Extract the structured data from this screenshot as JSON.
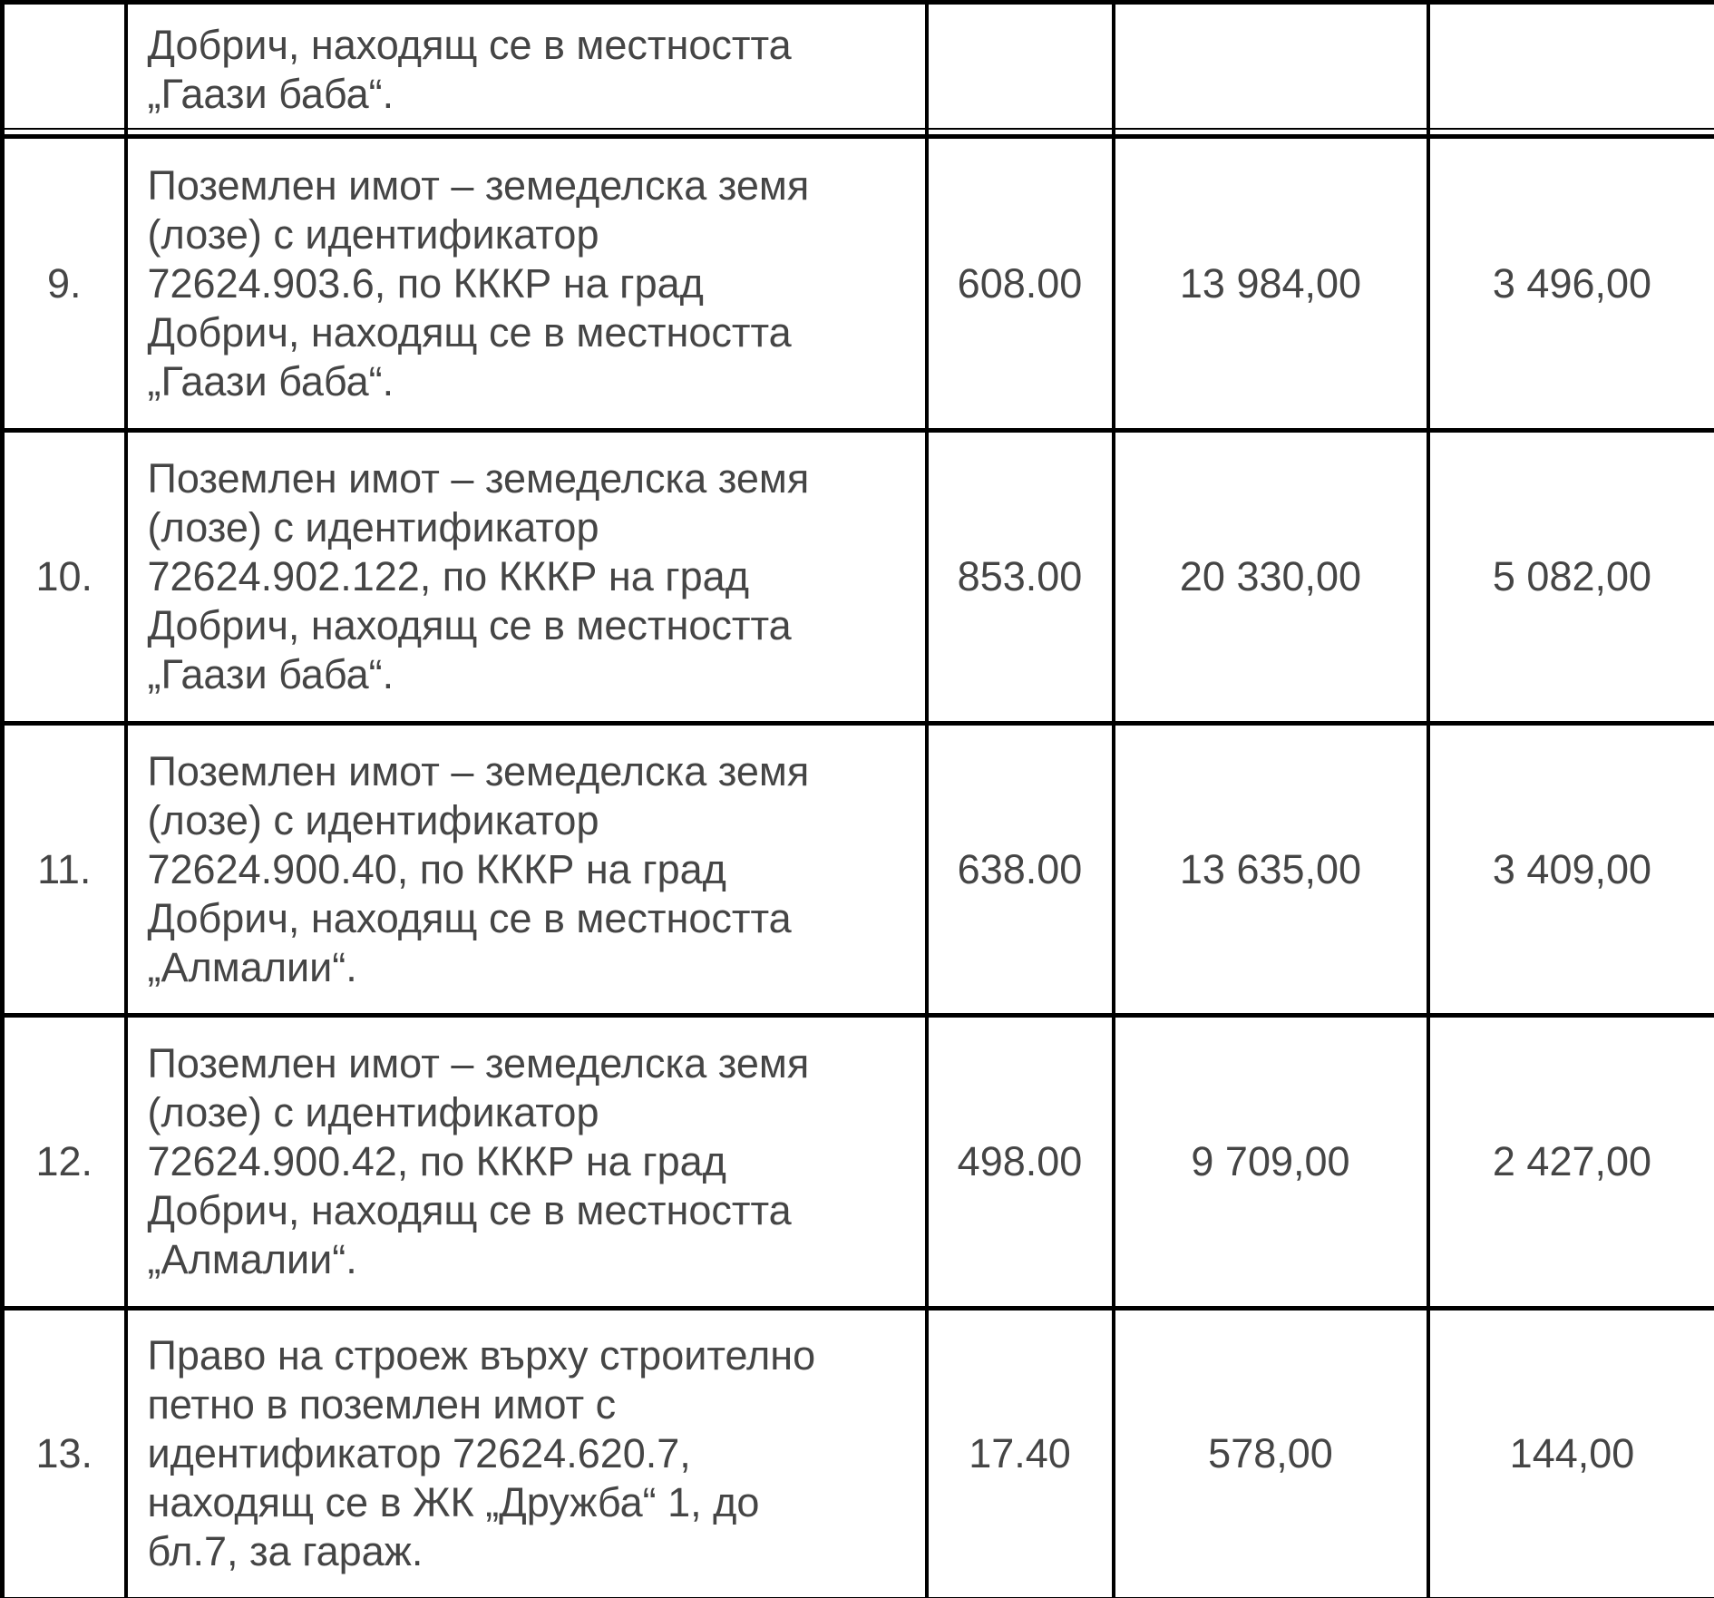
{
  "page": {
    "background_color": "#ffffff",
    "text_color": "#454545",
    "border_color": "#000000"
  },
  "table": {
    "continuation_row": {
      "number": "",
      "description": "Добрич, находящ се в местността „Гаази баба“.",
      "description_lines": [
        "Добрич, находящ се в местността",
        "„Гаази баба“."
      ],
      "values": [
        "",
        "",
        ""
      ]
    },
    "rows": [
      {
        "number": "9.",
        "description": "Поземлен имот – земеделска земя (лозе) с идентификатор 72624.903.6, по КККР на град Добрич, находящ се в местността „Гаази баба“.",
        "description_lines": [
          "Поземлен имот – земеделска земя",
          "(лозе) с идентификатор",
          "72624.903.6, по КККР на град",
          "Добрич, находящ се в местността",
          "„Гаази баба“."
        ],
        "values": [
          "608.00",
          "13 984,00",
          "3 496,00"
        ]
      },
      {
        "number": "10.",
        "description": "Поземлен имот – земеделска земя (лозе) с идентификатор 72624.902.122, по КККР на град Добрич, находящ се в местността „Гаази баба“.",
        "description_lines": [
          "Поземлен имот – земеделска земя",
          "(лозе) с идентификатор",
          "72624.902.122, по КККР на град",
          "Добрич, находящ се в местността",
          "„Гаази баба“."
        ],
        "values": [
          "853.00",
          "20 330,00",
          "5 082,00"
        ]
      },
      {
        "number": "11.",
        "description": "Поземлен имот – земеделска земя (лозе) с идентификатор 72624.900.40, по КККР на град Добрич, находящ се в местността „Алмалии“.",
        "description_lines": [
          "Поземлен имот – земеделска земя",
          "(лозе) с идентификатор",
          "72624.900.40, по КККР на град",
          "Добрич, находящ се в местността",
          "„Алмалии“."
        ],
        "values": [
          "638.00",
          "13 635,00",
          "3 409,00"
        ]
      },
      {
        "number": "12.",
        "description": "Поземлен имот – земеделска земя (лозе) с идентификатор 72624.900.42, по КККР на град Добрич, находящ се в местността „Алмалии“.",
        "description_lines": [
          "Поземлен имот – земеделска земя",
          "(лозе) с идентификатор",
          "72624.900.42, по КККР на град",
          "Добрич, находящ се в местността",
          "„Алмалии“."
        ],
        "values": [
          "498.00",
          "9 709,00",
          "2 427,00"
        ]
      },
      {
        "number": "13.",
        "description": "Право на строеж върху строително петно в поземлен имот с идентификатор 72624.620.7, находящ се в ЖК „Дружба“ 1, до бл.7, за гараж.",
        "description_lines": [
          "Право на строеж върху строително",
          "петно в поземлен имот с",
          "идентификатор 72624.620.7,",
          "находящ се в ЖК „Дружба“ 1, до",
          "бл.7, за гараж."
        ],
        "values": [
          "17.40",
          "578,00",
          "144,00"
        ]
      }
    ]
  }
}
